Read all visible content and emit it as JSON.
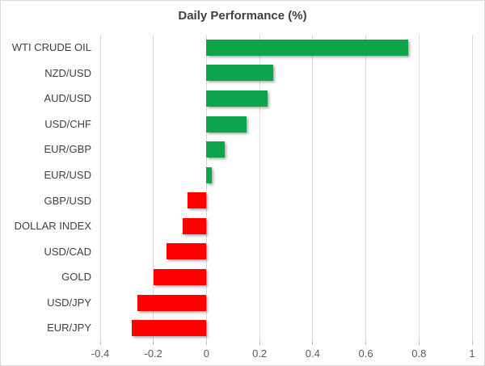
{
  "chart_data": {
    "type": "bar",
    "orientation": "horizontal",
    "title": "Daily Performance (%)",
    "categories": [
      "WTI CRUDE OIL",
      "NZD/USD",
      "AUD/USD",
      "USD/CHF",
      "EUR/GBP",
      "EUR/USD",
      "GBP/USD",
      "DOLLAR INDEX",
      "USD/CAD",
      "GOLD",
      "USD/JPY",
      "EUR/JPY"
    ],
    "values": [
      0.76,
      0.25,
      0.23,
      0.15,
      0.07,
      0.02,
      -0.07,
      -0.09,
      -0.15,
      -0.2,
      -0.26,
      -0.28
    ],
    "xlabel": "",
    "ylabel": "",
    "xlim": [
      -0.4,
      1
    ],
    "x_ticks": [
      -0.4,
      -0.2,
      0,
      0.2,
      0.4,
      0.6,
      0.8,
      1
    ],
    "x_tick_labels": [
      "-0.4",
      "-0.2",
      "0",
      "0.2",
      "0.4",
      "0.6",
      "0.8",
      "1"
    ],
    "grid": true,
    "legend": "none",
    "colors": {
      "positive_bar": "#0EA44C",
      "negative_bar": "#FD0000",
      "gridline": "#D9D9D9",
      "tick_mark": "#BFBFBF",
      "title_text": "#404040",
      "category_text": "#404040",
      "axis_text": "#595959",
      "chart_border": "#D9D9D9",
      "background": "#FFFFFF"
    }
  }
}
